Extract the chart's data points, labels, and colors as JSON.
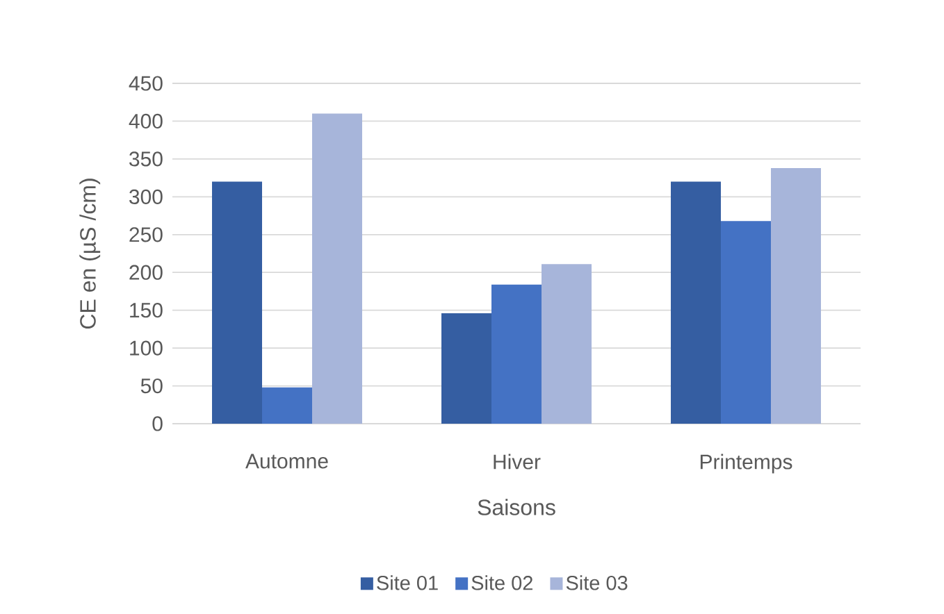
{
  "chart_data": {
    "type": "bar",
    "xlabel": "Saisons",
    "ylabel": "CE en (µS /cm)",
    "categories": [
      "Automne",
      "Hiver",
      "Printemps"
    ],
    "series": [
      {
        "name": "Site 01",
        "color": "#355ea2",
        "values": [
          320,
          146,
          320
        ]
      },
      {
        "name": "Site 02",
        "color": "#4472c4",
        "values": [
          48,
          184,
          268
        ]
      },
      {
        "name": "Site 03",
        "color": "#a7b5da",
        "values": [
          410,
          211,
          338
        ]
      }
    ],
    "ylim": [
      0,
      450
    ],
    "yticks": [
      0,
      50,
      100,
      150,
      200,
      250,
      300,
      350,
      400,
      450
    ],
    "grid": "y",
    "legend": "bottom"
  }
}
